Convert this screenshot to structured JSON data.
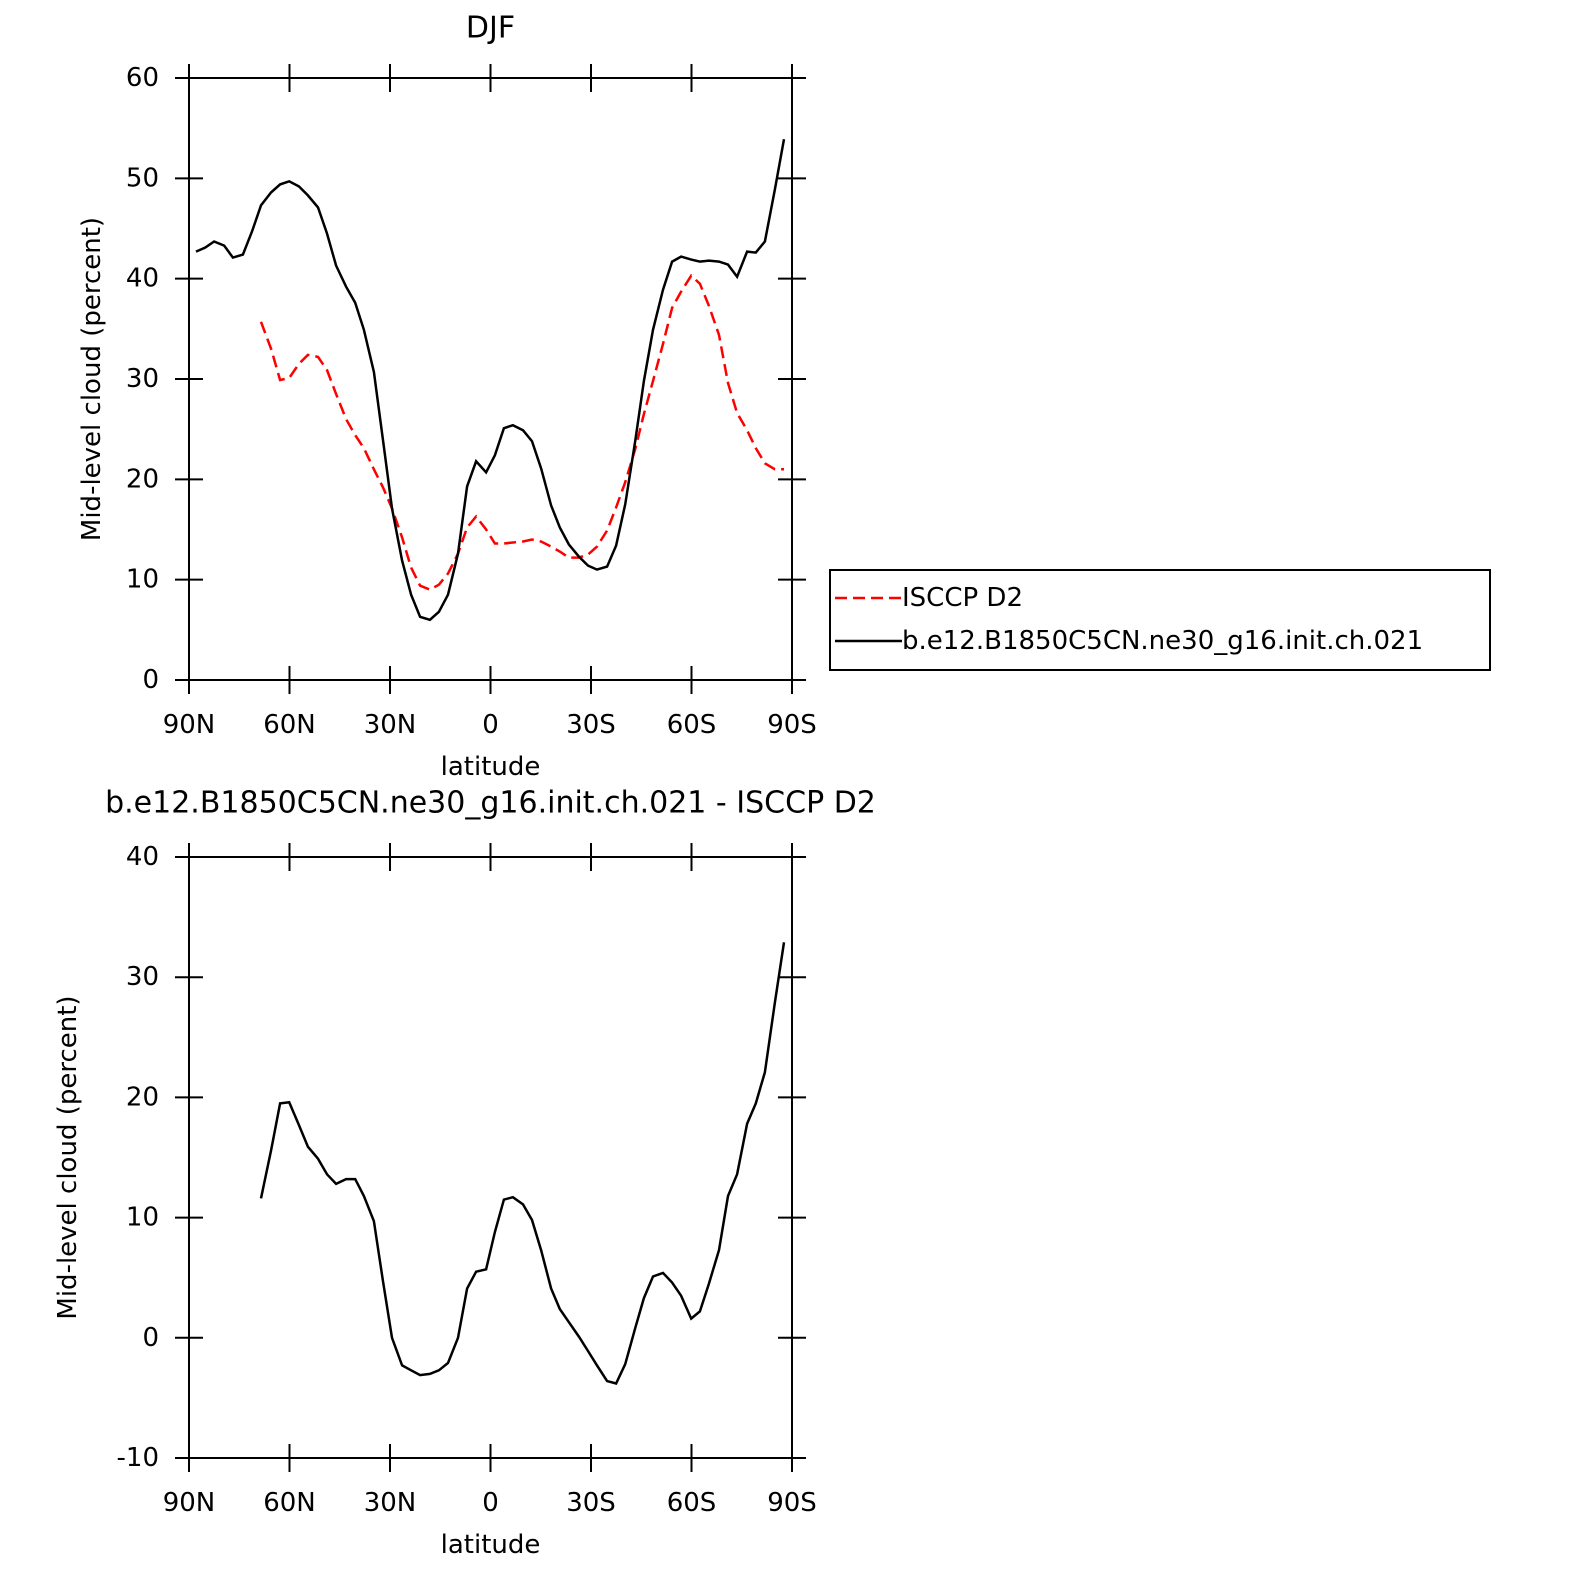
{
  "chart_data": [
    {
      "type": "line",
      "title": "DJF",
      "x_label": "latitude",
      "y_label": "Mid-level cloud (percent)",
      "x": [
        87.9,
        85.2,
        82.5,
        79.5,
        76.9,
        73.9,
        71.2,
        68.5,
        65.5,
        62.8,
        60.1,
        57.2,
        54.5,
        51.5,
        48.8,
        46.1,
        43.1,
        40.4,
        37.8,
        34.8,
        32.1,
        29.4,
        26.4,
        23.7,
        21.0,
        18.1,
        15.4,
        12.7,
        9.7,
        7.0,
        4.3,
        1.3,
        -1.3,
        -4.0,
        -6.7,
        -9.7,
        -12.4,
        -15.1,
        -18.1,
        -20.7,
        -23.4,
        -26.4,
        -29.1,
        -31.8,
        -34.8,
        -37.5,
        -40.2,
        -43.2,
        -45.8,
        -48.5,
        -51.5,
        -54.2,
        -56.9,
        -59.9,
        -62.5,
        -65.2,
        -68.2,
        -70.9,
        -73.6,
        -76.6,
        -79.2,
        -81.9,
        -84.9,
        -87.6
      ],
      "series": [
        {
          "name": "ISCCP D2",
          "color": "#ff0000",
          "dash": "dashed",
          "values": [
            null,
            null,
            null,
            null,
            null,
            null,
            null,
            35.7,
            33.0,
            29.9,
            30.1,
            31.5,
            32.4,
            32.2,
            30.9,
            28.5,
            26.0,
            24.4,
            23.1,
            21.0,
            19.2,
            17.1,
            14.2,
            11.2,
            9.4,
            9.0,
            9.5,
            10.6,
            12.6,
            15.2,
            16.3,
            15.0,
            13.6,
            13.6,
            13.7,
            13.8,
            14.0,
            13.8,
            13.3,
            12.8,
            12.2,
            12.2,
            12.5,
            13.3,
            14.9,
            17.2,
            19.7,
            23.0,
            26.5,
            29.8,
            33.5,
            37.1,
            38.7,
            40.3,
            39.5,
            37.3,
            34.4,
            29.6,
            26.6,
            24.9,
            23.1,
            21.6,
            21.0,
            21.0
          ]
        },
        {
          "name": "b.e12.B1850C5CN.ne30_g16.init.ch.021",
          "color": "#000000",
          "dash": "solid",
          "values": [
            42.7,
            43.1,
            43.7,
            43.3,
            42.1,
            42.4,
            44.7,
            47.3,
            48.6,
            49.4,
            49.7,
            49.2,
            48.3,
            47.1,
            44.5,
            41.3,
            39.2,
            37.6,
            34.9,
            30.7,
            23.9,
            17.1,
            11.9,
            8.5,
            6.3,
            6.0,
            6.8,
            8.5,
            12.6,
            19.3,
            21.8,
            20.7,
            22.4,
            25.1,
            25.4,
            24.9,
            23.8,
            21.1,
            17.4,
            15.2,
            13.5,
            12.3,
            11.4,
            11.0,
            11.3,
            13.4,
            17.5,
            23.8,
            29.8,
            34.9,
            38.9,
            41.7,
            42.2,
            41.9,
            41.7,
            41.8,
            41.7,
            41.4,
            40.2,
            42.7,
            42.6,
            43.7,
            48.9,
            53.9
          ]
        }
      ],
      "xlim": [
        90,
        -90
      ],
      "xticks": [
        {
          "value": 90,
          "label": "90N"
        },
        {
          "value": 60,
          "label": "60N"
        },
        {
          "value": 30,
          "label": "30N"
        },
        0,
        {
          "value": -30,
          "label": "30S"
        },
        {
          "value": -60,
          "label": "60S"
        },
        {
          "value": -90,
          "label": "90S"
        }
      ],
      "ylim": [
        0,
        60
      ],
      "yticks": [
        0,
        10,
        20,
        30,
        40,
        50,
        60
      ],
      "legend": "right"
    },
    {
      "type": "line",
      "title": "b.e12.B1850C5CN.ne30_g16.init.ch.021 - ISCCP D2",
      "x_label": "latitude",
      "y_label": "Mid-level cloud (percent)",
      "x": [
        87.9,
        85.2,
        82.5,
        79.5,
        76.9,
        73.9,
        71.2,
        68.5,
        65.5,
        62.8,
        60.1,
        57.2,
        54.5,
        51.5,
        48.8,
        46.1,
        43.1,
        40.4,
        37.8,
        34.8,
        32.1,
        29.4,
        26.4,
        23.7,
        21.0,
        18.1,
        15.4,
        12.7,
        9.7,
        7.0,
        4.3,
        1.3,
        -1.3,
        -4.0,
        -6.7,
        -9.7,
        -12.4,
        -15.1,
        -18.1,
        -20.7,
        -23.4,
        -26.4,
        -29.1,
        -31.8,
        -34.8,
        -37.5,
        -40.2,
        -43.2,
        -45.8,
        -48.5,
        -51.5,
        -54.2,
        -56.9,
        -59.9,
        -62.5,
        -65.2,
        -68.2,
        -70.9,
        -73.6,
        -76.6,
        -79.2,
        -81.9,
        -84.9,
        -87.6
      ],
      "values": [
        null,
        null,
        null,
        null,
        null,
        null,
        null,
        11.6,
        15.6,
        19.5,
        19.6,
        17.7,
        15.9,
        14.9,
        13.6,
        12.8,
        13.2,
        13.2,
        11.8,
        9.7,
        4.7,
        0.0,
        -2.3,
        -2.7,
        -3.1,
        -3.0,
        -2.7,
        -2.1,
        0.0,
        4.1,
        5.5,
        5.7,
        8.8,
        11.5,
        11.7,
        11.1,
        9.8,
        7.3,
        4.1,
        2.4,
        1.3,
        0.1,
        -1.1,
        -2.3,
        -3.6,
        -3.8,
        -2.2,
        0.8,
        3.3,
        5.1,
        5.4,
        4.6,
        3.5,
        1.6,
        2.2,
        4.5,
        7.3,
        11.8,
        13.6,
        17.8,
        19.5,
        22.1,
        27.9,
        32.9
      ],
      "color": "#000000",
      "xlim": [
        90,
        -90
      ],
      "xticks": [
        {
          "value": 90,
          "label": "90N"
        },
        {
          "value": 60,
          "label": "60N"
        },
        {
          "value": 30,
          "label": "30N"
        },
        0,
        {
          "value": -30,
          "label": "30S"
        },
        {
          "value": -60,
          "label": "60S"
        },
        {
          "value": -90,
          "label": "90S"
        }
      ],
      "ylim": [
        -10,
        40
      ],
      "yticks": [
        -10,
        0,
        10,
        20,
        30,
        40
      ]
    }
  ]
}
